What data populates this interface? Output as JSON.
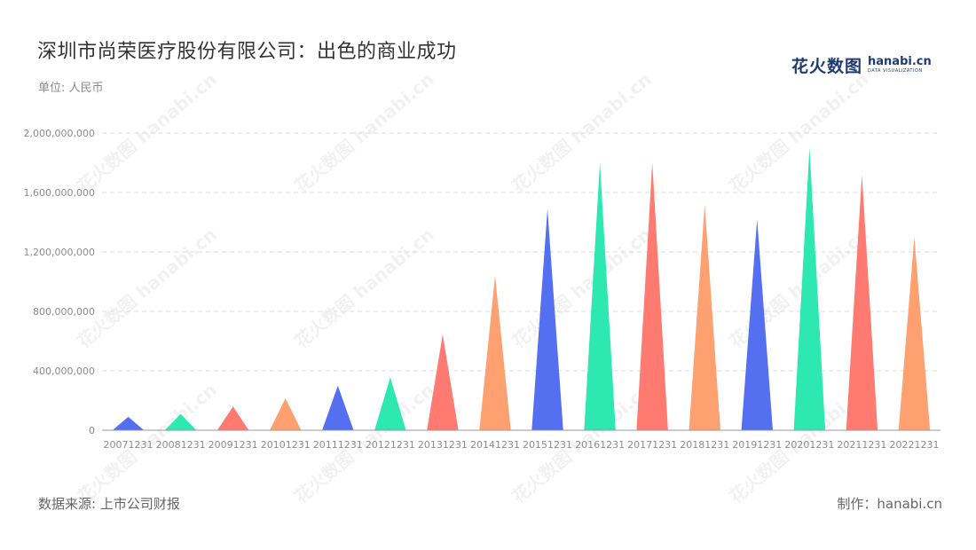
{
  "header": {
    "title": "深圳市尚荣医疗股份有限公司：出色的商业成功",
    "unit": "单位: 人民币"
  },
  "logo": {
    "name_cn": "花火数图",
    "name_en": "hanabi.cn",
    "tagline": "DATA VISUALIZATION"
  },
  "footer": {
    "source": "数据来源: 上市公司财报",
    "credit": "制作：hanabi.cn"
  },
  "watermark": "花火数图 hanabi.cn",
  "chart_data": {
    "type": "bar",
    "bar_shape": "triangle",
    "categories": [
      "20071231",
      "20081231",
      "20091231",
      "20101231",
      "20111231",
      "20121231",
      "20131231",
      "20141231",
      "20151231",
      "20161231",
      "20171231",
      "20181231",
      "20191231",
      "20201231",
      "20211231",
      "20221231"
    ],
    "values": [
      90000000,
      110000000,
      160000000,
      215000000,
      300000000,
      355000000,
      645000000,
      1040000000,
      1490000000,
      1800000000,
      1800000000,
      1520000000,
      1420000000,
      1900000000,
      1720000000,
      1300000000
    ],
    "colors": [
      "#5470f0",
      "#2de8b0",
      "#ff7a70",
      "#ffa070",
      "#5470f0",
      "#2de8b0",
      "#ff7a70",
      "#ffa070",
      "#5470f0",
      "#2de8b0",
      "#ff7a70",
      "#ffa070",
      "#5470f0",
      "#2de8b0",
      "#ff7a70",
      "#ffa070"
    ],
    "yticks": [
      "0",
      "400,000,000",
      "800,000,000",
      "1,200,000,000",
      "1,600,000,000",
      "2,000,000,000"
    ],
    "ylim": [
      0,
      2000000000
    ],
    "grid": true,
    "title": "深圳市尚荣医疗股份有限公司：出色的商业成功",
    "xlabel": "",
    "ylabel": ""
  }
}
